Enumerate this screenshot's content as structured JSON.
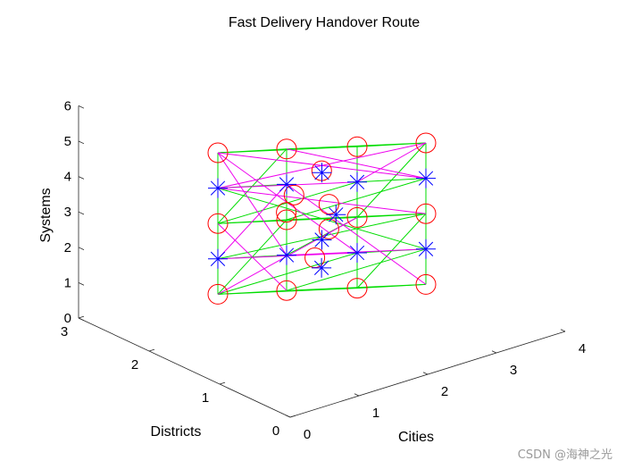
{
  "chart_data": {
    "type": "scatter",
    "title": "Fast Delivery Handover Route",
    "xlabel": "Cities",
    "ylabel": "Districts",
    "zlabel": "Systems",
    "xlim": [
      0,
      4
    ],
    "ylim": [
      0,
      3
    ],
    "zlim": [
      0,
      6
    ],
    "xticks": [
      "0",
      "1",
      "2",
      "3",
      "4"
    ],
    "yticks": [
      "0",
      "1",
      "2",
      "3"
    ],
    "zticks": [
      "0",
      "1",
      "2",
      "3",
      "4",
      "5",
      "6"
    ],
    "series": [
      {
        "marker": "circle",
        "color": "#ff0000",
        "points": [
          [
            1,
            2,
            1
          ],
          [
            1,
            2,
            3
          ],
          [
            1,
            2,
            5
          ],
          [
            3,
            1,
            1
          ],
          [
            3,
            1,
            3
          ],
          [
            3,
            1,
            5
          ],
          [
            2,
            2,
            0.5
          ],
          [
            2,
            2,
            2.5
          ],
          [
            2,
            2,
            4.5
          ],
          [
            2,
            1,
            1.5
          ],
          [
            2,
            1,
            3.5
          ],
          [
            2,
            1,
            5.5
          ],
          [
            2,
            1.4,
            2.8
          ],
          [
            2,
            1.4,
            3.5
          ],
          [
            2,
            1.6,
            1.8
          ],
          [
            2.2,
            2.2,
            2.4
          ],
          [
            1.8,
            1.7,
            3.6
          ],
          [
            2.1,
            1.6,
            4.2
          ]
        ]
      },
      {
        "marker": "asterisk",
        "color": "#0000ff",
        "points": [
          [
            1,
            2,
            2
          ],
          [
            1,
            2,
            4
          ],
          [
            3,
            1,
            2
          ],
          [
            3,
            1,
            4
          ],
          [
            2,
            2,
            1.5
          ],
          [
            2,
            2,
            3.5
          ],
          [
            2,
            1,
            2.5
          ],
          [
            2,
            1,
            4.5
          ],
          [
            2,
            1.5,
            2.4
          ],
          [
            2,
            1.5,
            4.3
          ],
          [
            2.2,
            1.7,
            1.3
          ],
          [
            2,
            1.3,
            3.3
          ]
        ]
      },
      {
        "type": "line",
        "color": "#00dd00",
        "segments": [
          [
            [
              1,
              2,
              1
            ],
            [
              2,
              2,
              0.5
            ]
          ],
          [
            [
              2,
              2,
              0.5
            ],
            [
              3,
              1,
              1
            ]
          ],
          [
            [
              3,
              1,
              1
            ],
            [
              2,
              1,
              1.5
            ]
          ],
          [
            [
              2,
              1,
              1.5
            ],
            [
              1,
              2,
              1
            ]
          ],
          [
            [
              1,
              2,
              3
            ],
            [
              2,
              2,
              2.5
            ]
          ],
          [
            [
              2,
              2,
              2.5
            ],
            [
              3,
              1,
              3
            ]
          ],
          [
            [
              3,
              1,
              3
            ],
            [
              2,
              1,
              3.5
            ]
          ],
          [
            [
              2,
              1,
              3.5
            ],
            [
              1,
              2,
              3
            ]
          ],
          [
            [
              1,
              2,
              5
            ],
            [
              2,
              2,
              4.5
            ]
          ],
          [
            [
              2,
              2,
              4.5
            ],
            [
              3,
              1,
              5
            ]
          ],
          [
            [
              3,
              1,
              5
            ],
            [
              2,
              1,
              5.5
            ]
          ],
          [
            [
              2,
              1,
              5.5
            ],
            [
              1,
              2,
              5
            ]
          ],
          [
            [
              1,
              2,
              1
            ],
            [
              2,
              1,
              2.5
            ]
          ],
          [
            [
              1,
              2,
              3
            ],
            [
              2,
              1,
              4.5
            ]
          ],
          [
            [
              2,
              2,
              0.5
            ],
            [
              3,
              1,
              2
            ]
          ],
          [
            [
              2,
              2,
              2.5
            ],
            [
              3,
              1,
              4
            ]
          ],
          [
            [
              1,
              2,
              2
            ],
            [
              2,
              2,
              1.5
            ]
          ],
          [
            [
              1,
              2,
              4
            ],
            [
              2,
              2,
              3.5
            ]
          ],
          [
            [
              2,
              1,
              2.5
            ],
            [
              3,
              1,
              2
            ]
          ],
          [
            [
              2,
              1,
              4.5
            ],
            [
              3,
              1,
              4
            ]
          ],
          [
            [
              1,
              2,
              1
            ],
            [
              2,
              2,
              2.5
            ]
          ],
          [
            [
              1,
              2,
              3
            ],
            [
              2,
              2,
              4.5
            ]
          ],
          [
            [
              2,
              1,
              1.5
            ],
            [
              3,
              1,
              3
            ]
          ],
          [
            [
              2,
              1,
              3.5
            ],
            [
              3,
              1,
              5
            ]
          ],
          [
            [
              2,
              1,
              5.5
            ],
            [
              2,
              1,
              1.5
            ]
          ],
          [
            [
              2,
              2,
              0.5
            ],
            [
              2,
              2,
              4.5
            ]
          ],
          [
            [
              1,
              2,
              1
            ],
            [
              1,
              2,
              5
            ]
          ],
          [
            [
              3,
              1,
              1
            ],
            [
              3,
              1,
              5
            ]
          ],
          [
            [
              1,
              2,
              2
            ],
            [
              3,
              1,
              3
            ]
          ],
          [
            [
              1,
              2,
              4
            ],
            [
              3,
              1,
              2
            ]
          ],
          [
            [
              2,
              2,
              1.5
            ],
            [
              2,
              1,
              3.5
            ]
          ]
        ]
      },
      {
        "type": "line",
        "color": "#ee00ee",
        "segments": [
          [
            [
              1,
              2,
              5
            ],
            [
              2,
              2,
              1.5
            ]
          ],
          [
            [
              1,
              2,
              5
            ],
            [
              2,
              1,
              2.5
            ]
          ],
          [
            [
              1,
              2,
              5
            ],
            [
              3,
              1,
              4
            ]
          ],
          [
            [
              1,
              2,
              4
            ],
            [
              3,
              1,
              5
            ]
          ],
          [
            [
              1,
              2,
              4
            ],
            [
              2,
              1,
              4.5
            ]
          ],
          [
            [
              2,
              2,
              4.5
            ],
            [
              3,
              1,
              4
            ]
          ],
          [
            [
              2,
              1,
              4.5
            ],
            [
              3,
              1,
              5
            ]
          ],
          [
            [
              1,
              2,
              3
            ],
            [
              2,
              2,
              0.5
            ]
          ],
          [
            [
              1,
              2,
              2
            ],
            [
              2,
              2,
              3.5
            ]
          ],
          [
            [
              2,
              2,
              1.5
            ],
            [
              3,
              1,
              2
            ]
          ],
          [
            [
              1,
              2,
              1
            ],
            [
              2,
              1,
              3.5
            ]
          ],
          [
            [
              2,
              2,
              3.5
            ],
            [
              3,
              1,
              1
            ]
          ],
          [
            [
              1,
              2,
              4
            ],
            [
              3,
              1,
              3
            ]
          ],
          [
            [
              2,
              1,
              2.5
            ],
            [
              1,
              2,
              2
            ]
          ]
        ]
      }
    ]
  },
  "watermark": "CSDN @海神之光"
}
